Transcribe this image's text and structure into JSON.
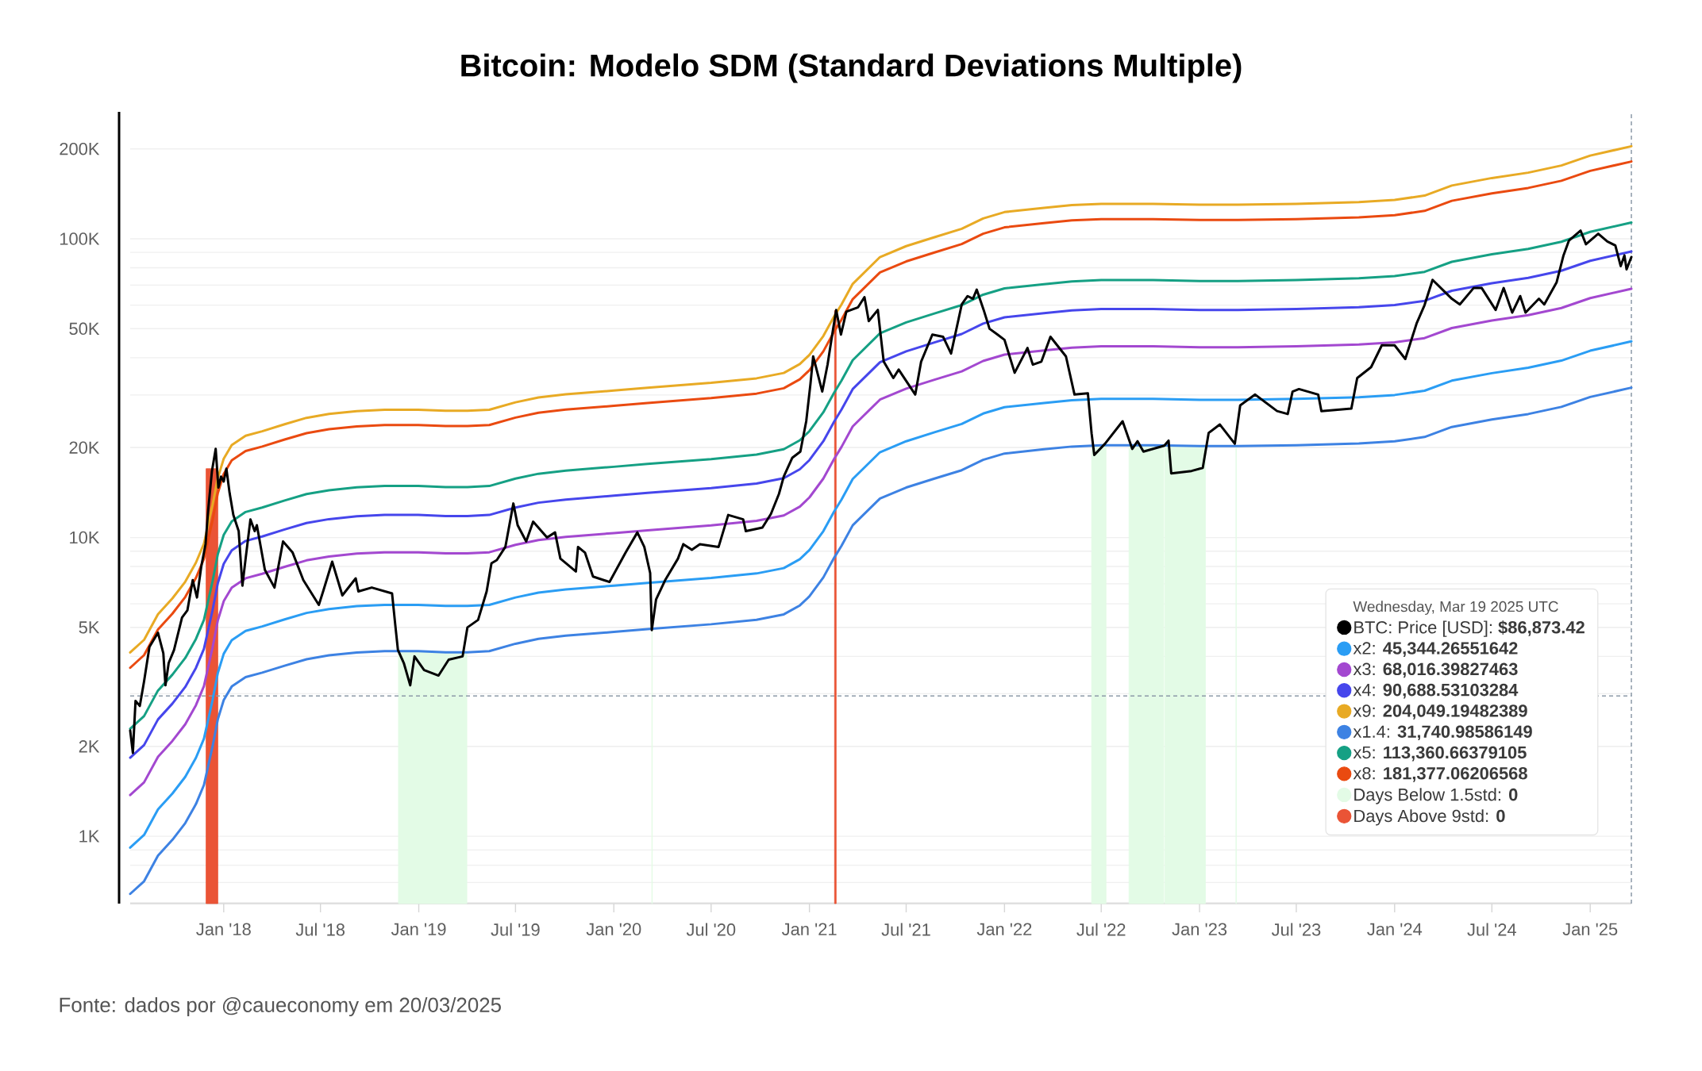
{
  "chart_data": {
    "type": "line",
    "title": "Bitcoin: Modelo SDM (Standard Deviations Multiple)",
    "legend_title": "Wednesday, Mar 19 2025 UTC",
    "annotations": [
      "Fonte: dados por @caueconomy em 20/03/2025"
    ],
    "x": [
      "2017-07-10",
      "2017-08-05",
      "2017-08-31",
      "2017-09-27",
      "2017-10-21",
      "2017-11-10",
      "2017-11-25",
      "2017-12-11",
      "2017-12-21",
      "2018-01-01",
      "2018-01-16",
      "2018-02-11",
      "2018-03-14",
      "2018-04-25",
      "2018-06-05",
      "2018-07-17",
      "2018-09-07",
      "2018-10-29",
      "2018-12-31",
      "2019-02-20",
      "2019-04-02",
      "2019-05-13",
      "2019-07-01",
      "2019-08-13",
      "2019-10-03",
      "2020-01-01",
      "2020-03-04",
      "2020-07-01",
      "2020-09-24",
      "2020-11-14",
      "2020-12-14",
      "2021-01-01",
      "2021-01-27",
      "2021-02-16",
      "2021-03-02",
      "2021-03-23",
      "2021-05-13",
      "2021-07-01",
      "2021-08-23",
      "2021-10-13",
      "2021-11-22",
      "2022-01-01",
      "2022-03-16",
      "2022-05-07",
      "2022-07-01",
      "2022-10-06",
      "2023-01-01",
      "2023-03-14",
      "2023-07-01",
      "2023-10-26",
      "2024-01-01",
      "2024-02-26",
      "2024-04-17",
      "2024-07-01",
      "2024-09-07",
      "2024-11-08",
      "2025-01-01",
      "2025-03-19"
    ],
    "series": [
      {
        "name": "BTC: Price [USD]: **$86,873.42**",
        "color": "#000000",
        "x": [
          "2017-07-10",
          "2017-07-15",
          "2017-07-20",
          "2017-07-28",
          "2017-08-05",
          "2017-08-15",
          "2017-08-31",
          "2017-09-10",
          "2017-09-14",
          "2017-09-20",
          "2017-09-30",
          "2017-10-15",
          "2017-10-25",
          "2017-11-04",
          "2017-11-12",
          "2017-11-20",
          "2017-11-28",
          "2017-12-03",
          "2017-12-10",
          "2017-12-17",
          "2017-12-22",
          "2017-12-27",
          "2018-01-01",
          "2018-01-06",
          "2018-01-12",
          "2018-01-19",
          "2018-01-29",
          "2018-02-05",
          "2018-02-11",
          "2018-02-20",
          "2018-02-28",
          "2018-03-04",
          "2018-03-19",
          "2018-04-06",
          "2018-04-22",
          "2018-05-10",
          "2018-05-30",
          "2018-06-28",
          "2018-07-06",
          "2018-07-23",
          "2018-08-11",
          "2018-09-05",
          "2018-09-10",
          "2018-10-05",
          "2018-11-12",
          "2018-11-18",
          "2018-11-23",
          "2018-12-04",
          "2018-12-16",
          "2018-12-24",
          "2019-01-11",
          "2019-02-07",
          "2019-02-26",
          "2019-03-24",
          "2019-04-02",
          "2019-04-22",
          "2019-05-08",
          "2019-05-17",
          "2019-05-27",
          "2019-06-12",
          "2019-06-27",
          "2019-07-05",
          "2019-07-21",
          "2019-08-03",
          "2019-08-29",
          "2019-09-13",
          "2019-09-23",
          "2019-10-22",
          "2019-10-26",
          "2019-11-08",
          "2019-11-23",
          "2019-12-24",
          "2020-01-23",
          "2020-02-14",
          "2020-02-27",
          "2020-03-09",
          "2020-03-12",
          "2020-03-20",
          "2020-04-06",
          "2020-04-30",
          "2020-05-10",
          "2020-05-26",
          "2020-06-10",
          "2020-07-15",
          "2020-08-02",
          "2020-08-30",
          "2020-09-04",
          "2020-10-05",
          "2020-10-21",
          "2020-11-05",
          "2020-11-14",
          "2020-11-30",
          "2020-12-15",
          "2020-12-26",
          "2021-01-03",
          "2021-01-08",
          "2021-01-25",
          "2021-02-04",
          "2021-02-12",
          "2021-02-20",
          "2021-03-01",
          "2021-03-11",
          "2021-04-02",
          "2021-04-14",
          "2021-04-22",
          "2021-05-09",
          "2021-05-14",
          "2021-05-20",
          "2021-06-07",
          "2021-06-17",
          "2021-07-18",
          "2021-07-29",
          "2021-08-19",
          "2021-09-08",
          "2021-09-23",
          "2021-10-13",
          "2021-10-24",
          "2021-11-03",
          "2021-11-10",
          "2021-11-23",
          "2021-12-04",
          "2021-12-19",
          "2022-01-01",
          "2022-01-20",
          "2022-02-13",
          "2022-02-23",
          "2022-03-11",
          "2022-03-28",
          "2022-04-26",
          "2022-05-12",
          "2022-06-06",
          "2022-06-13",
          "2022-06-18",
          "2022-07-08",
          "2022-08-10",
          "2022-08-28",
          "2022-09-07",
          "2022-09-18",
          "2022-10-27",
          "2022-11-04",
          "2022-11-09",
          "2022-12-17",
          "2023-01-07",
          "2023-01-18",
          "2023-02-08",
          "2023-03-08",
          "2023-03-18",
          "2023-04-15",
          "2023-05-26",
          "2023-06-15",
          "2023-06-24",
          "2023-07-06",
          "2023-08-11",
          "2023-08-17",
          "2023-10-12",
          "2023-10-23",
          "2023-11-18",
          "2023-12-08",
          "2024-01-01",
          "2024-01-21",
          "2024-02-11",
          "2024-02-26",
          "2024-03-12",
          "2024-04-17",
          "2024-05-02",
          "2024-05-28",
          "2024-06-12",
          "2024-07-08",
          "2024-07-23",
          "2024-08-08",
          "2024-08-23",
          "2024-09-02",
          "2024-09-27",
          "2024-10-07",
          "2024-10-30",
          "2024-11-12",
          "2024-11-22",
          "2024-12-14",
          "2024-12-24",
          "2025-01-16",
          "2025-02-02",
          "2025-02-17",
          "2025-02-27",
          "2025-03-06",
          "2025-03-10",
          "2025-03-19"
        ],
        "values": [
          2260,
          1900,
          2840,
          2730,
          3300,
          4300,
          4800,
          4100,
          3200,
          3800,
          4200,
          5400,
          5700,
          7200,
          6300,
          8000,
          9500,
          12400,
          16700,
          19800,
          14700,
          16000,
          15400,
          17000,
          14100,
          11900,
          10500,
          6900,
          8500,
          11500,
          10500,
          11000,
          7800,
          6800,
          9700,
          8900,
          7200,
          5950,
          6600,
          8300,
          6400,
          7300,
          6600,
          6800,
          6500,
          5100,
          4200,
          3800,
          3200,
          4000,
          3600,
          3450,
          3900,
          4000,
          5000,
          5300,
          6600,
          8200,
          8400,
          9300,
          13000,
          11000,
          9700,
          11300,
          10000,
          10400,
          8500,
          7700,
          9300,
          8900,
          7400,
          7100,
          8900,
          10400,
          9300,
          7600,
          4900,
          6200,
          7200,
          8500,
          9500,
          9100,
          9500,
          9300,
          11900,
          11500,
          10500,
          10800,
          12000,
          14000,
          16000,
          18500,
          19400,
          24500,
          32800,
          40400,
          30800,
          38000,
          47000,
          57800,
          47800,
          57000,
          59000,
          63800,
          53000,
          57800,
          48000,
          38800,
          34200,
          36500,
          30100,
          38800,
          47800,
          47000,
          41300,
          60300,
          64300,
          63000,
          67600,
          57800,
          50000,
          47800,
          45900,
          35600,
          43100,
          37900,
          38800,
          47000,
          40400,
          30100,
          30400,
          22300,
          18900,
          20600,
          24500,
          19800,
          21000,
          19400,
          20300,
          21100,
          16400,
          16700,
          17100,
          22400,
          23900,
          20600,
          27700,
          30100,
          26500,
          25900,
          30800,
          31400,
          30100,
          26500,
          27000,
          34200,
          37200,
          44000,
          44000,
          39600,
          52000,
          60000,
          72900,
          63000,
          60300,
          68500,
          68400,
          57800,
          68400,
          56600,
          64300,
          56600,
          63000,
          60300,
          71400,
          88000,
          98500,
          106500,
          95900,
          104000,
          97900,
          95000,
          81000,
          88000,
          79000,
          86873.42
        ]
      },
      {
        "name": "x2: **45,344.26551642**",
        "color": "#2a9df4",
        "values": [
          916,
          1010,
          1230,
          1390,
          1580,
          1830,
          2120,
          2850,
          3520,
          4080,
          4530,
          4870,
          5040,
          5320,
          5590,
          5760,
          5890,
          5950,
          5950,
          5900,
          5900,
          5950,
          6300,
          6540,
          6700,
          6900,
          7050,
          7320,
          7580,
          7900,
          8460,
          9080,
          10500,
          12200,
          13400,
          15700,
          19300,
          21000,
          22500,
          24000,
          26000,
          27300,
          28200,
          28800,
          29100,
          29100,
          28900,
          28900,
          29100,
          29500,
          30000,
          31000,
          33500,
          35500,
          37000,
          39100,
          42200,
          45344.26551642
        ]
      },
      {
        "name": "x3: **68,016.39827463**",
        "color": "#a348d0",
        "values": [
          1374,
          1515,
          1845,
          2085,
          2370,
          2745,
          3180,
          4275,
          5280,
          6120,
          6795,
          7305,
          7560,
          7980,
          8385,
          8640,
          8835,
          8925,
          8925,
          8850,
          8850,
          8925,
          9450,
          9810,
          10050,
          10350,
          10575,
          10980,
          11370,
          11850,
          12690,
          13620,
          15750,
          18300,
          20100,
          23550,
          28950,
          31500,
          33750,
          36000,
          39000,
          40950,
          42300,
          43200,
          43650,
          43650,
          43350,
          43350,
          43650,
          44250,
          45000,
          46500,
          50250,
          53250,
          55500,
          58650,
          63300,
          68016.39827463
        ]
      },
      {
        "name": "x4: **90,688.53103284**",
        "color": "#4646ec",
        "values": [
          1832,
          2020,
          2460,
          2780,
          3160,
          3660,
          4240,
          5700,
          7040,
          8160,
          9060,
          9740,
          10080,
          10640,
          11180,
          11520,
          11780,
          11900,
          11900,
          11800,
          11800,
          11900,
          12600,
          13080,
          13400,
          13800,
          14100,
          14640,
          15160,
          15800,
          16920,
          18160,
          21000,
          24400,
          26800,
          31400,
          38600,
          42000,
          45000,
          48000,
          52000,
          54600,
          56400,
          57600,
          58200,
          58200,
          57800,
          57800,
          58200,
          59000,
          60000,
          62000,
          67000,
          71000,
          74000,
          78200,
          84400,
          90688.53103284
        ]
      },
      {
        "name": "x9: **204,049.19482389**",
        "color": "#e8aa24",
        "values": [
          4122,
          4545,
          5535,
          6255,
          7110,
          8235,
          9540,
          12825,
          15840,
          18360,
          20385,
          21915,
          22680,
          23940,
          25155,
          25920,
          26505,
          26775,
          26775,
          26550,
          26550,
          26775,
          28350,
          29430,
          30150,
          31050,
          31725,
          32940,
          34110,
          35550,
          38070,
          40860,
          47250,
          54900,
          60300,
          70650,
          86850,
          94500,
          101250,
          108000,
          117000,
          122850,
          126900,
          129600,
          130950,
          130950,
          130050,
          130050,
          130950,
          132750,
          135000,
          139500,
          150750,
          159750,
          166500,
          175950,
          189900,
          204049.19482389
        ]
      },
      {
        "name": "x1.4: **31,740.98586149**",
        "color": "#3d82e3",
        "values": [
          641.2,
          707,
          861,
          973,
          1106,
          1281,
          1484,
          1995,
          2464,
          2856,
          3171,
          3409,
          3528,
          3724,
          3913,
          4032,
          4123,
          4165,
          4165,
          4130,
          4130,
          4165,
          4410,
          4578,
          4690,
          4830,
          4935,
          5124,
          5306,
          5530,
          5922,
          6356,
          7350,
          8540,
          9380,
          10990,
          13510,
          14700,
          15750,
          16800,
          18200,
          19110,
          19740,
          20160,
          20370,
          20370,
          20230,
          20230,
          20370,
          20650,
          21000,
          21700,
          23450,
          24850,
          25900,
          27370,
          29540,
          31740.98586149
        ]
      },
      {
        "name": "x5: **113,360.66379105**",
        "color": "#15a084",
        "values": [
          2290,
          2525,
          3075,
          3475,
          3950,
          4575,
          5300,
          7125,
          8800,
          10200,
          11325,
          12175,
          12600,
          13300,
          13975,
          14400,
          14725,
          14875,
          14875,
          14750,
          14750,
          14875,
          15750,
          16350,
          16750,
          17250,
          17625,
          18300,
          18950,
          19750,
          21150,
          22700,
          26250,
          30500,
          33500,
          39250,
          48250,
          52500,
          56250,
          60000,
          65000,
          68250,
          70500,
          72000,
          72750,
          72750,
          72250,
          72250,
          72750,
          73750,
          75000,
          77500,
          83750,
          88750,
          92500,
          97750,
          105500,
          113360.66379105
        ]
      },
      {
        "name": "x8: **181,377.06206568**",
        "color": "#ea4a10",
        "values": [
          3664,
          4040,
          4920,
          5560,
          6320,
          7320,
          8480,
          11400,
          14080,
          16320,
          18120,
          19480,
          20160,
          21280,
          22360,
          23040,
          23560,
          23800,
          23800,
          23600,
          23600,
          23800,
          25200,
          26160,
          26800,
          27600,
          28200,
          29280,
          30320,
          31600,
          33840,
          36320,
          42000,
          48800,
          53600,
          62800,
          77200,
          84000,
          90000,
          96000,
          104000,
          109200,
          112800,
          115200,
          116400,
          116400,
          115600,
          115600,
          116400,
          118000,
          120000,
          124000,
          134000,
          142000,
          148000,
          156400,
          168800,
          181377.06206568
        ]
      },
      {
        "name": "Days Below 1.5std: **0**",
        "type": "area",
        "color": "#e3fbe6",
        "x": [
          "2018-11-24",
          "2019-04-01",
          "2019-06-01",
          "2020-03-12",
          "2020-03-13",
          "2020-06-01",
          "2022-06-13",
          "2022-07-10",
          "2022-08-01",
          "2022-08-22",
          "2022-10-26",
          "2022-10-27",
          "2022-10-28",
          "2023-01-12",
          "2023-02-01",
          "2023-03-10",
          "2023-03-11"
        ],
        "values": [
          4165,
          4130,
          null,
          4935,
          4935,
          null,
          20370,
          20370,
          null,
          20370,
          20370,
          null,
          20300,
          20230,
          null,
          20230,
          20230
        ]
      },
      {
        "name": "Days Above 9std: **0**",
        "type": "area",
        "color": "#ea5436",
        "x": [
          "2017-11-29",
          "2017-12-21",
          "2018-06-01",
          "2021-02-17",
          "2021-02-20"
        ],
        "values": [
          17000,
          17000,
          null,
          57500,
          57500
        ]
      }
    ],
    "ref_lines": [
      {
        "axis": "y",
        "value": 2950,
        "line_style": "dashed",
        "color": "#8c9aa8"
      },
      {
        "axis": "x",
        "value": "2025-03-19",
        "line_style": "dashed",
        "color": "#8c9aa8"
      }
    ],
    "xlim": [
      "2017-07-10",
      "2025-03-19"
    ],
    "xticks": [
      {
        "value": "2018-01-01",
        "label": "Jan '18"
      },
      {
        "value": "2018-07-01",
        "label": "Jul '18"
      },
      {
        "value": "2019-01-01",
        "label": "Jan '19"
      },
      {
        "value": "2019-07-01",
        "label": "Jul '19"
      },
      {
        "value": "2020-01-01",
        "label": "Jan '20"
      },
      {
        "value": "2020-07-01",
        "label": "Jul '20"
      },
      {
        "value": "2021-01-01",
        "label": "Jan '21"
      },
      {
        "value": "2021-07-01",
        "label": "Jul '21"
      },
      {
        "value": "2022-01-01",
        "label": "Jan '22"
      },
      {
        "value": "2022-07-01",
        "label": "Jul '22"
      },
      {
        "value": "2023-01-01",
        "label": "Jan '23"
      },
      {
        "value": "2023-07-01",
        "label": "Jul '23"
      },
      {
        "value": "2024-01-01",
        "label": "Jan '24"
      },
      {
        "value": "2024-07-01",
        "label": "Jul '24"
      },
      {
        "value": "2025-01-01",
        "label": "Jan '25"
      }
    ],
    "ylim": [
      595,
      266000
    ],
    "yticks": [
      {
        "value": 1000,
        "label": "1K"
      },
      {
        "value": 2000,
        "label": "2K"
      },
      {
        "value": 5000,
        "label": "5K"
      },
      {
        "value": 10000,
        "label": "10K"
      },
      {
        "value": 20000,
        "label": "20K"
      },
      {
        "value": 50000,
        "label": "50K"
      },
      {
        "value": 100000,
        "label": "100K"
      },
      {
        "value": 200000,
        "label": "200K"
      }
    ],
    "log": "y",
    "grid": "y",
    "legend": "bottom right"
  }
}
